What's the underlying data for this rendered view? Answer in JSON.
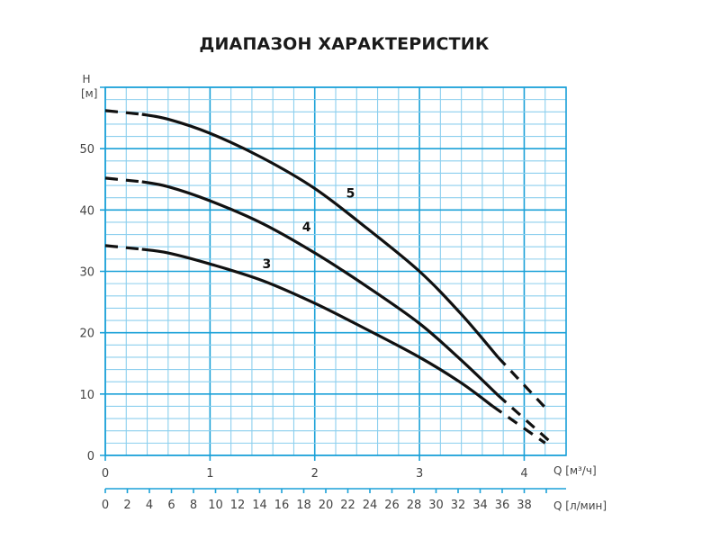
{
  "title": "ДИАПАЗОН ХАРАКТЕРИСТИК",
  "y_axis": {
    "symbol": "H",
    "unit": "[м]"
  },
  "x_axis_top": {
    "label": "Q [м³/ч]"
  },
  "x_axis_bottom": {
    "label": "Q [л/мин]"
  },
  "colors": {
    "grid_major": "#1ba1d8",
    "grid_minor": "#8ccfee",
    "curve": "#111111",
    "axis_text": "#444444"
  },
  "chart_data": {
    "type": "line",
    "title": "ДИАПАЗОН ХАРАКТЕРИСТИК",
    "xlabel": "Q [м³/ч]",
    "xlabel_secondary": "Q [л/мин]",
    "ylabel": "H [м]",
    "xlim": [
      0,
      4.4
    ],
    "ylim": [
      0,
      60
    ],
    "grid": true,
    "x_ticks": [
      0,
      1,
      2,
      3,
      4
    ],
    "y_ticks": [
      0,
      10,
      20,
      30,
      40,
      50
    ],
    "x_secondary_ticks": [
      0,
      2,
      4,
      6,
      8,
      10,
      12,
      14,
      16,
      18,
      20,
      22,
      24,
      26,
      28,
      30,
      32,
      34,
      36,
      38
    ],
    "legend": "curve labels placed inline",
    "series": [
      {
        "name": "5",
        "label_at": [
          2.3,
          42
        ],
        "dashed_start": [
          [
            0,
            56.2
          ],
          [
            0.35,
            55.6
          ]
        ],
        "solid": [
          [
            0.35,
            55.6
          ],
          [
            0.6,
            54.8
          ],
          [
            1.0,
            52.5
          ],
          [
            1.5,
            48.5
          ],
          [
            2.0,
            43.5
          ],
          [
            2.5,
            37.0
          ],
          [
            3.0,
            30.0
          ],
          [
            3.4,
            23.0
          ],
          [
            3.75,
            16.0
          ]
        ],
        "dashed_end": [
          [
            3.75,
            16.0
          ],
          [
            4.2,
            7.8
          ]
        ]
      },
      {
        "name": "4",
        "label_at": [
          1.88,
          36.5
        ],
        "dashed_start": [
          [
            0,
            45.2
          ],
          [
            0.35,
            44.6
          ]
        ],
        "solid": [
          [
            0.35,
            44.6
          ],
          [
            0.6,
            43.8
          ],
          [
            1.0,
            41.5
          ],
          [
            1.5,
            37.8
          ],
          [
            2.0,
            33.0
          ],
          [
            2.5,
            27.5
          ],
          [
            3.0,
            21.5
          ],
          [
            3.4,
            15.5
          ],
          [
            3.75,
            9.8
          ]
        ],
        "dashed_end": [
          [
            3.75,
            9.8
          ],
          [
            4.25,
            2.2
          ]
        ]
      },
      {
        "name": "3",
        "label_at": [
          1.5,
          30.5
        ],
        "dashed_start": [
          [
            0,
            34.2
          ],
          [
            0.35,
            33.6
          ]
        ],
        "solid": [
          [
            0.35,
            33.6
          ],
          [
            0.6,
            33.0
          ],
          [
            1.0,
            31.2
          ],
          [
            1.5,
            28.5
          ],
          [
            2.0,
            24.8
          ],
          [
            2.5,
            20.5
          ],
          [
            3.0,
            16.0
          ],
          [
            3.4,
            11.8
          ],
          [
            3.7,
            8.0
          ]
        ],
        "dashed_end": [
          [
            3.7,
            8.0
          ],
          [
            4.2,
            2.0
          ]
        ]
      }
    ]
  }
}
